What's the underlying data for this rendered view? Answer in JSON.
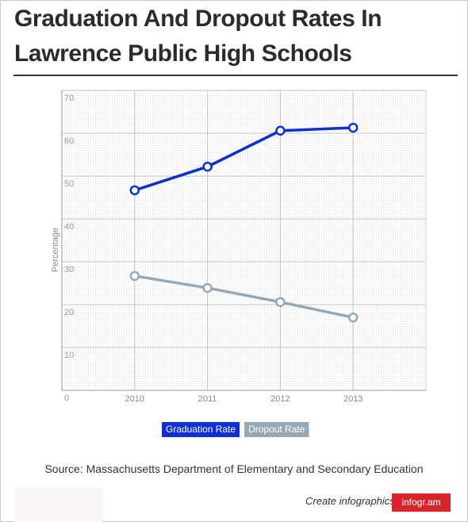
{
  "chart_data": {
    "type": "line",
    "title": "Graduation And Dropout Rates In Lawrence Public High Schools",
    "y_label": "Percentage",
    "x": [
      2010,
      2011,
      2012,
      2013
    ],
    "xlim": [
      2009,
      2014
    ],
    "xticks": [
      2010,
      2011,
      2012,
      2013
    ],
    "ylim": [
      0,
      70
    ],
    "yticks": [
      0,
      10,
      20,
      30,
      40,
      50,
      60,
      70
    ],
    "grid": true,
    "series": [
      {
        "name": "Graduation Rate",
        "color": "#0f2fd3",
        "values": [
          46.7,
          52.2,
          60.6,
          61.3
        ]
      },
      {
        "name": "Dropout Rate",
        "color": "#97a8b4",
        "values": [
          26.7,
          23.9,
          20.6,
          17.0
        ]
      }
    ],
    "source": "Source: Massachusetts Department of Elementary and Secondary Education"
  },
  "footer": {
    "link": "Create infographics",
    "brand": "infogr.am"
  }
}
